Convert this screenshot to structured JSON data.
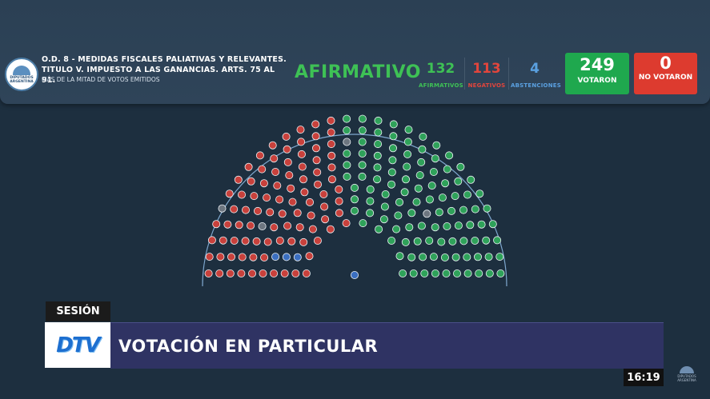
{
  "header": {
    "logo_lines": [
      "DIPUTADOS",
      "ARGENTINA"
    ],
    "title": "O.D. 8 - MEDIDAS FISCALES PALIATIVAS Y RELEVANTES. TITULO V. IMPUESTO A LAS GANANCIAS. ARTS. 75 AL 91.",
    "subtitle": "MÁS DE LA MITAD DE VOTOS EMITIDOS",
    "result": "AFIRMATIVO",
    "afirmativos": {
      "value": "132",
      "label": "AFIRMATIVOS"
    },
    "negativos": {
      "value": "113",
      "label": "NEGATIVOS"
    },
    "abstenciones": {
      "value": "4",
      "label": "ABSTENCIONES"
    },
    "votaron": {
      "value": "249",
      "label": "VOTARON"
    },
    "no_votaron": {
      "value": "0",
      "label": "NO VOTARON"
    }
  },
  "hemicycle": {
    "colors": {
      "afirmativo": "#2fa25a",
      "negativo": "#c8413c",
      "abstencion": "#3b6fc0",
      "vacante": "#6d7680"
    }
  },
  "lower_third": {
    "section": "SESIÓN",
    "channel_logo": "DTV",
    "headline": "VOTACIÓN EN PARTICULAR",
    "clock": "16:19",
    "corner_logo_text": "DIPUTADOS ARGENTINA"
  },
  "colors": {
    "afirmativo": "#3ec155",
    "negativo": "#e2453c",
    "abstencion": "#5aa0e0"
  }
}
